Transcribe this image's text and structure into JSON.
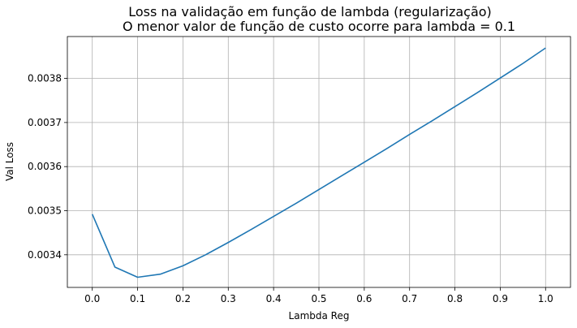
{
  "chart_data": {
    "type": "line",
    "title": "Loss na validação em função de lambda (regularização)",
    "subtitle": "O menor valor de função de custo ocorre para lambda = 0.1",
    "xlabel": "Lambda Reg",
    "ylabel": "Val Loss",
    "xlim": [
      -0.055,
      1.055
    ],
    "ylim": [
      0.003326,
      0.003895
    ],
    "xticks": [
      0.0,
      0.1,
      0.2,
      0.3,
      0.4,
      0.5,
      0.6,
      0.7,
      0.8,
      0.9,
      1.0
    ],
    "xtick_labels": [
      "0.0",
      "0.1",
      "0.2",
      "0.3",
      "0.4",
      "0.5",
      "0.6",
      "0.7",
      "0.8",
      "0.9",
      "1.0"
    ],
    "yticks": [
      0.0034,
      0.0035,
      0.0036,
      0.0037,
      0.0038
    ],
    "ytick_labels": [
      "0.0034",
      "0.0035",
      "0.0036",
      "0.0037",
      "0.0038"
    ],
    "grid": true,
    "series": [
      {
        "color": "#1f77b4",
        "x": [
          0.0,
          0.05,
          0.1,
          0.15,
          0.2,
          0.25,
          0.3,
          0.35,
          0.4,
          0.45,
          0.5,
          0.55,
          0.6,
          0.65,
          0.7,
          0.75,
          0.8,
          0.85,
          0.9,
          0.95,
          1.0
        ],
        "y": [
          0.003492,
          0.003372,
          0.003349,
          0.003356,
          0.003375,
          0.0034,
          0.003428,
          0.003457,
          0.003487,
          0.003517,
          0.003548,
          0.003579,
          0.00361,
          0.003641,
          0.003673,
          0.003704,
          0.003736,
          0.003768,
          0.003801,
          0.003834,
          0.003869
        ]
      }
    ]
  }
}
